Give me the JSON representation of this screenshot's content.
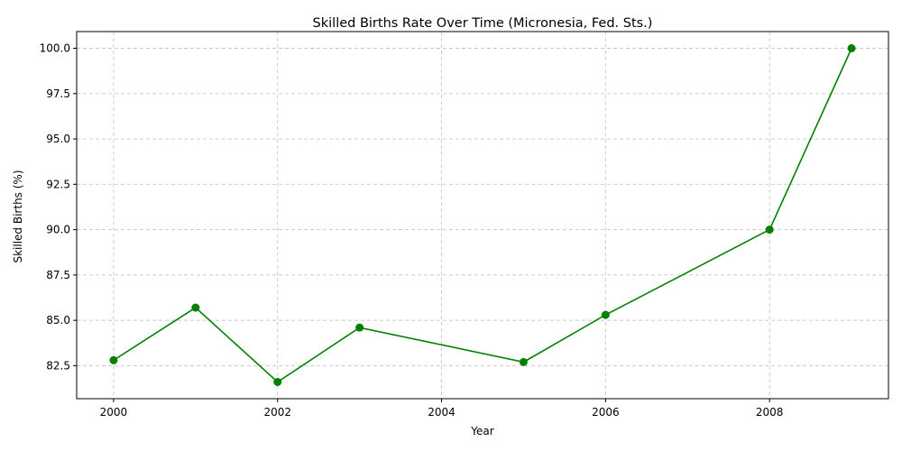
{
  "chart_data": {
    "type": "line",
    "title": "Skilled Births Rate Over Time (Micronesia, Fed. Sts.)",
    "xlabel": "Year",
    "ylabel": "Skilled Births (%)",
    "x": [
      2000,
      2001,
      2002,
      2003,
      2005,
      2006,
      2008,
      2009
    ],
    "series": [
      {
        "values": [
          82.8,
          85.7,
          81.6,
          84.6,
          82.7,
          85.3,
          90.0,
          100.0
        ]
      }
    ],
    "xlim": [
      1999.55,
      2009.45
    ],
    "ylim": [
      80.68,
      100.92
    ],
    "xticks": [
      2000,
      2002,
      2004,
      2006,
      2008
    ],
    "xtick_labels": [
      "2000",
      "2002",
      "2004",
      "2006",
      "2008"
    ],
    "yticks": [
      82.5,
      85.0,
      87.5,
      90.0,
      92.5,
      95.0,
      97.5,
      100.0
    ],
    "ytick_labels": [
      "82.5",
      "85.0",
      "87.5",
      "90.0",
      "92.5",
      "95.0",
      "97.5",
      "100.0"
    ],
    "grid": true,
    "line_color": "#008000",
    "grid_color": "#c8c8c8"
  }
}
